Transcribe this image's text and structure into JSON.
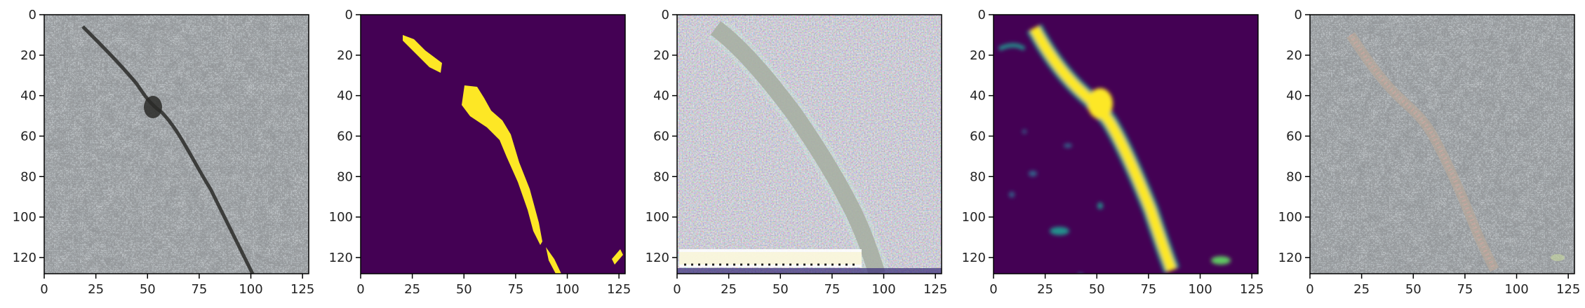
{
  "figure": {
    "panel_count": 5,
    "axis": {
      "x_ticks": [
        "0",
        "25",
        "50",
        "75",
        "100",
        "125"
      ],
      "y_ticks": [
        "0",
        "20",
        "40",
        "60",
        "80",
        "100",
        "120"
      ],
      "x_range": [
        0,
        128
      ],
      "y_range": [
        0,
        128
      ]
    },
    "panels": [
      {
        "content": "concrete-crack-photo"
      },
      {
        "content": "ground-truth-mask"
      },
      {
        "content": "feature-visualization"
      },
      {
        "content": "predicted-probability-map"
      },
      {
        "content": "overlay-on-photo"
      }
    ],
    "colors": {
      "mask_background": "#440154",
      "mask_foreground": "#fde725",
      "concrete": "#a3a9ab"
    }
  }
}
